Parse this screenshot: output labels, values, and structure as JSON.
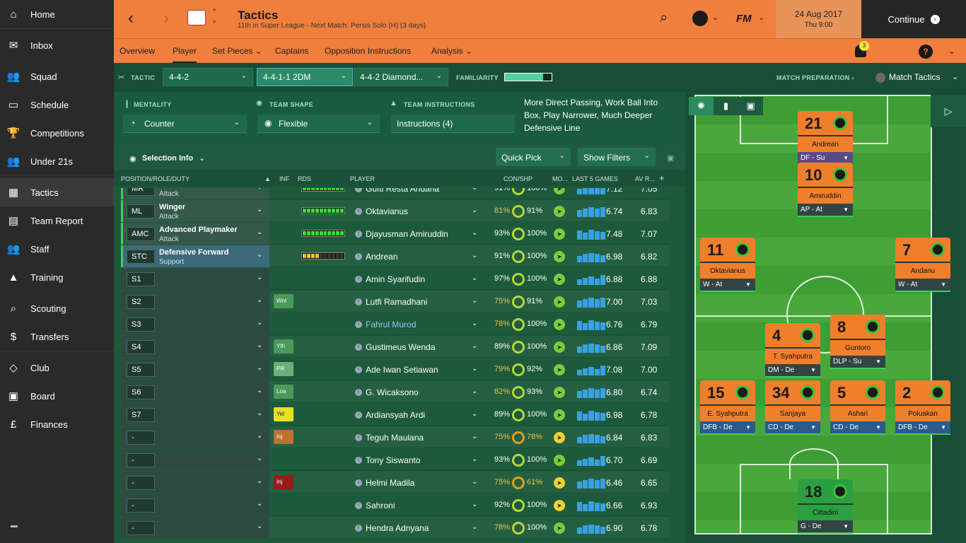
{
  "sidebar": {
    "items": [
      {
        "label": "Home",
        "icon": "home-icon",
        "glyph": "⌂"
      },
      {
        "label": "Inbox",
        "icon": "inbox-icon",
        "glyph": "✉"
      },
      {
        "label": "Squad",
        "icon": "squad-icon",
        "glyph": "👥"
      },
      {
        "label": "Schedule",
        "icon": "schedule-icon",
        "glyph": "▭"
      },
      {
        "label": "Competitions",
        "icon": "trophy-icon",
        "glyph": "🏆"
      },
      {
        "label": "Under 21s",
        "icon": "under21-icon",
        "glyph": "👥"
      },
      {
        "label": "Tactics",
        "icon": "tactics-icon",
        "glyph": "▦"
      },
      {
        "label": "Team Report",
        "icon": "report-icon",
        "glyph": "▤"
      },
      {
        "label": "Staff",
        "icon": "staff-icon",
        "glyph": "👥"
      },
      {
        "label": "Training",
        "icon": "training-icon",
        "glyph": "▲"
      },
      {
        "label": "Scouting",
        "icon": "scouting-icon",
        "glyph": "⌕"
      },
      {
        "label": "Transfers",
        "icon": "transfers-icon",
        "glyph": "$"
      },
      {
        "label": "Club",
        "icon": "club-icon",
        "glyph": "◇"
      },
      {
        "label": "Board",
        "icon": "board-icon",
        "glyph": "▣"
      },
      {
        "label": "Finances",
        "icon": "finances-icon",
        "glyph": "£"
      }
    ]
  },
  "header": {
    "title": "Tactics",
    "subtitle": "11th in Super League - Next Match: Persis Solo (H) (3 days)",
    "date": "24 Aug 2017",
    "time": "Thu 9:00",
    "continue": "Continue",
    "fm": "FM",
    "notif_count": "3"
  },
  "subnav": {
    "tabs": [
      "Overview",
      "Player",
      "Set Pieces ⌄",
      "Captains",
      "Opposition Instructions",
      "Analysis ⌄"
    ]
  },
  "tacbar": {
    "tactic_label": "TACTIC",
    "tactic1": "4-4-2",
    "tactic2": "4-4-1-1 2DM",
    "tactic3": "4-4-2 Diamond...",
    "familiarity_label": "FAMILIARITY",
    "familiarity": 0.82,
    "match_prep": "MATCH PREPARATION ›",
    "match_tactics": "Match Tactics"
  },
  "instr": {
    "mentality_label": "MENTALITY",
    "mentality": "Counter",
    "shape_label": "TEAM SHAPE",
    "shape": "Flexible",
    "ti_label": "TEAM INSTRUCTIONS",
    "ti": "Instructions (4)",
    "text": "More Direct Passing, Work Ball Into Box, Play Narrower, Much Deeper Defensive Line"
  },
  "table": {
    "selection_info": "Selection Info",
    "quick_pick": "Quick Pick",
    "show_filters": "Show Filters",
    "headers": {
      "pos": "POSITION/ROLE/DUTY",
      "inf": "INF",
      "rds": "RDS",
      "player": "PLAYER",
      "con": "CON/SHP",
      "mo": "MO...",
      "last5": "LAST 5 GAMES",
      "av": "AV R..."
    },
    "rows": [
      {
        "pos": "MR",
        "role": "",
        "duty": "Attack",
        "inf": "",
        "rds": 10,
        "name": "Gufti Resta Andana",
        "con": "91%",
        "shp": "100%",
        "av1": "7.12",
        "av2": "7.05",
        "sel": true,
        "partial": true
      },
      {
        "pos": "ML",
        "role": "Winger",
        "duty": "Attack",
        "inf": "",
        "rds": 10,
        "name": "Oktavianus",
        "con": "81%",
        "shp": "91%",
        "av1": "6.74",
        "av2": "6.83",
        "sel": true,
        "warn": true
      },
      {
        "pos": "AMC",
        "role": "Advanced Playmaker",
        "duty": "Attack",
        "inf": "",
        "rds": 10,
        "name": "Djayusman Amiruddin",
        "con": "93%",
        "shp": "100%",
        "av1": "7.48",
        "av2": "7.07",
        "sel": true
      },
      {
        "pos": "STC",
        "role": "Defensive Forward",
        "duty": "Support",
        "inf": "",
        "rds": 4,
        "name": "Andrean",
        "con": "91%",
        "shp": "100%",
        "av1": "6.98",
        "av2": "6.82",
        "sel": true,
        "act": true
      },
      {
        "pos": "S1",
        "role": "",
        "duty": "",
        "inf": "",
        "name": "Amin Syarifudin",
        "con": "97%",
        "shp": "100%",
        "av1": "6.88",
        "av2": "6.88"
      },
      {
        "pos": "S2",
        "role": "",
        "duty": "",
        "inf": "Wnt",
        "infc": "#4a9a5a",
        "name": "Lutfi Ramadhani",
        "con": "75%",
        "shp": "91%",
        "av1": "7.00",
        "av2": "7.03",
        "warn": true
      },
      {
        "pos": "S3",
        "role": "",
        "duty": "",
        "inf": "",
        "name": "Fahrul Murod",
        "con": "78%",
        "shp": "100%",
        "av1": "6.76",
        "av2": "6.79",
        "blue": true,
        "warn": true
      },
      {
        "pos": "S4",
        "role": "",
        "duty": "",
        "inf": "Yth",
        "infc": "#4a9a5a",
        "name": "Gustimeus Wenda",
        "con": "89%",
        "shp": "100%",
        "av1": "6.86",
        "av2": "7.09"
      },
      {
        "pos": "S5",
        "role": "",
        "duty": "",
        "inf": "PR",
        "infc": "#6ab07a",
        "name": "Ade Iwan Setiawan",
        "con": "79%",
        "shp": "92%",
        "av1": "7.08",
        "av2": "7.00",
        "warn": true
      },
      {
        "pos": "S6",
        "role": "",
        "duty": "",
        "inf": "Loa",
        "infc": "#4a9a5a",
        "name": "G. Wicaksono",
        "con": "82%",
        "shp": "93%",
        "av1": "6.80",
        "av2": "6.74",
        "warn": true
      },
      {
        "pos": "S7",
        "role": "",
        "duty": "",
        "inf": "Yel",
        "infc": "#e8e020",
        "name": "Ardiansyah Ardi",
        "con": "89%",
        "shp": "100%",
        "av1": "6.98",
        "av2": "6.78"
      },
      {
        "pos": "-",
        "role": "",
        "duty": "",
        "inf": "Inj",
        "infc": "#c07030",
        "name": "Teguh Maulana",
        "con": "75%",
        "shp": "78%",
        "av1": "6.84",
        "av2": "6.83",
        "warn": true,
        "shpwarn": true,
        "mo": "y"
      },
      {
        "pos": "-",
        "role": "",
        "duty": "",
        "inf": "",
        "name": "Tony Siswanto",
        "con": "93%",
        "shp": "100%",
        "av1": "6.70",
        "av2": "6.69"
      },
      {
        "pos": "-",
        "role": "",
        "duty": "",
        "inf": "Inj",
        "infc": "#9a1a1a",
        "name": "Helmi Madila",
        "con": "75%",
        "shp": "61%",
        "av1": "6.46",
        "av2": "6.65",
        "warn": true,
        "shpwarn": true,
        "mo": "y"
      },
      {
        "pos": "-",
        "role": "",
        "duty": "",
        "inf": "",
        "name": "Sahroni",
        "con": "92%",
        "shp": "100%",
        "av1": "6.66",
        "av2": "6.93",
        "mo": "y"
      },
      {
        "pos": "-",
        "role": "",
        "duty": "",
        "inf": "",
        "name": "Hendra Adnyana",
        "con": "78%",
        "shp": "100%",
        "av1": "6.90",
        "av2": "6.78",
        "warn": true
      }
    ]
  },
  "pitch": {
    "players": [
      {
        "num": "21",
        "name": "Andrean",
        "role": "DF - Su",
        "cls": "df"
      },
      {
        "num": "10",
        "name": "Amiruddin",
        "role": "AP - At",
        "cls": ""
      },
      {
        "num": "11",
        "name": "Oktavianus",
        "role": "W - At",
        "cls": ""
      },
      {
        "num": "7",
        "name": "Andanu",
        "role": "W - At",
        "cls": ""
      },
      {
        "num": "4",
        "name": "T. Syahputra",
        "role": "DM - De",
        "cls": ""
      },
      {
        "num": "8",
        "name": "Guntoro",
        "role": "DLP - Su",
        "cls": ""
      },
      {
        "num": "15",
        "name": "E. Syahputra",
        "role": "DFB - De",
        "cls": "blue"
      },
      {
        "num": "34",
        "name": "Sanjaya",
        "role": "CD - De",
        "cls": "blue"
      },
      {
        "num": "5",
        "name": "Ashari",
        "role": "CD - De",
        "cls": "blue"
      },
      {
        "num": "2",
        "name": "Poluakan",
        "role": "DFB - De",
        "cls": "blue"
      },
      {
        "num": "18",
        "name": "Cittadini",
        "role": "G - De",
        "cls": "gk"
      }
    ]
  }
}
